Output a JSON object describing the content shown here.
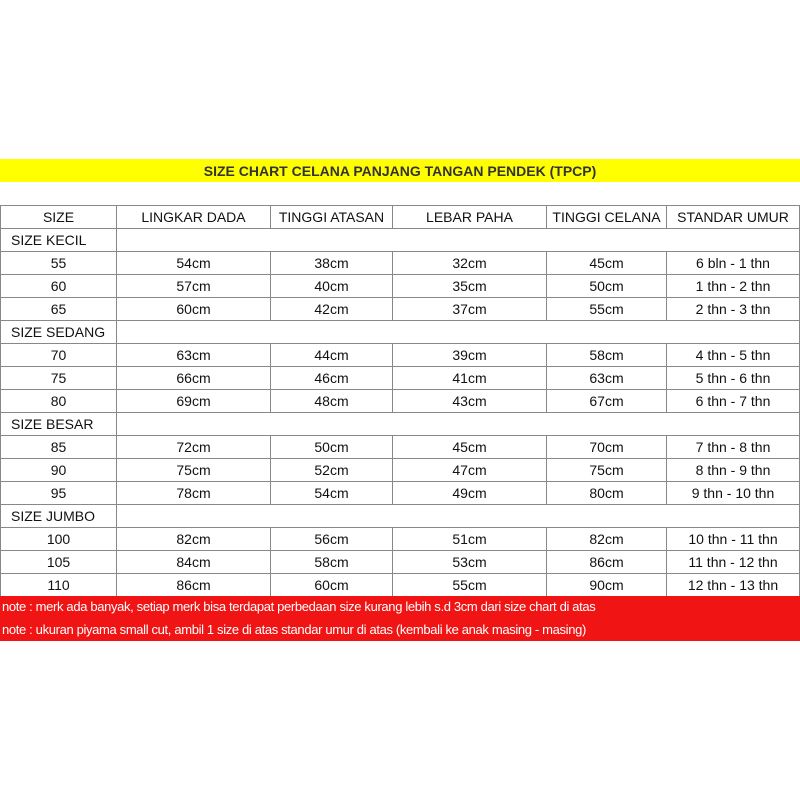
{
  "title": "SIZE CHART CELANA PANJANG TANGAN PENDEK (TPCP)",
  "colors": {
    "title_bg": "#ffff00",
    "note_bg": "#f01414",
    "note_text": "#ffffff"
  },
  "headers": [
    "SIZE",
    "LINGKAR DADA",
    "TINGGI ATASAN",
    "LEBAR PAHA",
    "TINGGI CELANA",
    "STANDAR UMUR"
  ],
  "sections": [
    {
      "name": "SIZE KECIL",
      "rows": [
        [
          "55",
          "54cm",
          "38cm",
          "32cm",
          "45cm",
          "6 bln - 1 thn"
        ],
        [
          "60",
          "57cm",
          "40cm",
          "35cm",
          "50cm",
          "1 thn - 2 thn"
        ],
        [
          "65",
          "60cm",
          "42cm",
          "37cm",
          "55cm",
          "2 thn - 3 thn"
        ]
      ]
    },
    {
      "name": "SIZE SEDANG",
      "rows": [
        [
          "70",
          "63cm",
          "44cm",
          "39cm",
          "58cm",
          "4 thn - 5 thn"
        ],
        [
          "75",
          "66cm",
          "46cm",
          "41cm",
          "63cm",
          "5 thn - 6 thn"
        ],
        [
          "80",
          "69cm",
          "48cm",
          "43cm",
          "67cm",
          "6 thn - 7 thn"
        ]
      ]
    },
    {
      "name": "SIZE BESAR",
      "rows": [
        [
          "85",
          "72cm",
          "50cm",
          "45cm",
          "70cm",
          "7 thn - 8 thn"
        ],
        [
          "90",
          "75cm",
          "52cm",
          "47cm",
          "75cm",
          "8 thn - 9 thn"
        ],
        [
          "95",
          "78cm",
          "54cm",
          "49cm",
          "80cm",
          "9 thn - 10 thn"
        ]
      ]
    },
    {
      "name": "SIZE JUMBO",
      "rows": [
        [
          "100",
          "82cm",
          "56cm",
          "51cm",
          "82cm",
          "10 thn - 11 thn"
        ],
        [
          "105",
          "84cm",
          "58cm",
          "53cm",
          "86cm",
          "11 thn - 12 thn"
        ],
        [
          "110",
          "86cm",
          "60cm",
          "55cm",
          "90cm",
          "12 thn - 13 thn"
        ]
      ]
    }
  ],
  "notes": [
    "note : merk ada banyak, setiap merk bisa terdapat perbedaan size kurang lebih s.d 3cm dari size chart di atas",
    "note : ukuran piyama small cut, ambil 1 size di atas standar umur di atas (kembali ke anak masing - masing)"
  ]
}
